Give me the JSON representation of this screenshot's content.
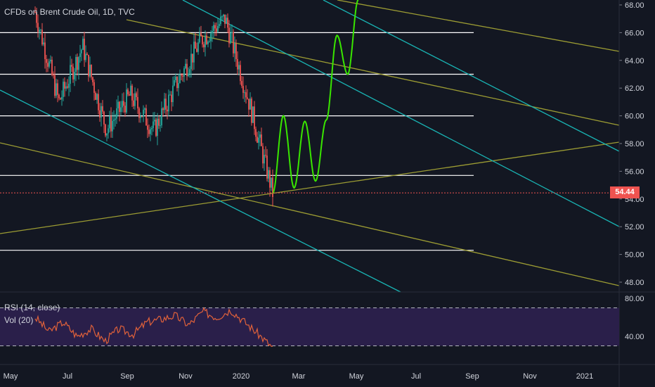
{
  "header": {
    "symbol_title": "CFDs on Brent Crude Oil, 1D, TVC"
  },
  "rsi_panel": {
    "label": "RSI (14, close)",
    "vol_label": "Vol (20)",
    "upper_band": 70,
    "lower_band": 30,
    "ticks": [
      "80.00",
      "40.00"
    ]
  },
  "last_price_badge": "54.44",
  "colors": {
    "background": "#131722",
    "up_candle": "#26a69a",
    "down_candle": "#ef5350",
    "level_line": "#ffffff",
    "olive_trendline": "#9c9c33",
    "teal_trendline": "#19b3b3",
    "projection": "#39e600",
    "rsi_line": "#e0613a",
    "rsi_fill": "#2a1f4a"
  },
  "chart_data": {
    "type": "candlestick",
    "title": "CFDs on Brent Crude Oil, 1D, TVC",
    "y_ticks": [
      "68.00",
      "66.00",
      "64.00",
      "62.00",
      "60.00",
      "58.00",
      "56.00",
      "54.00",
      "52.00",
      "50.00",
      "48.00"
    ],
    "ylim": [
      47.4,
      68.4
    ],
    "x_ticks": [
      "May",
      "Jul",
      "Sep",
      "Nov",
      "2020",
      "Mar",
      "May",
      "Jul",
      "Sep",
      "Nov",
      "2021"
    ],
    "horizontal_levels": [
      66.0,
      63.0,
      60.0,
      55.7,
      50.3
    ],
    "last_price": 54.44,
    "price_path": [
      {
        "t": "May",
        "price": 67.5
      },
      {
        "t": "Jun",
        "price": 61.0
      },
      {
        "t": "Jul",
        "price": 65.0
      },
      {
        "t": "Aug",
        "price": 59.0
      },
      {
        "t": "Sep",
        "price": 61.5
      },
      {
        "t": "Oct",
        "price": 58.9
      },
      {
        "t": "Nov",
        "price": 62.5
      },
      {
        "t": "Dec",
        "price": 65.5
      },
      {
        "t": "Jan 2020",
        "price": 67.0
      },
      {
        "t": "Jan 2020 late",
        "price": 61.0
      },
      {
        "t": "Feb 2020",
        "price": 54.44
      }
    ],
    "projection_path": [
      {
        "t": "Feb",
        "price": 54.4
      },
      {
        "t": "Feb late",
        "price": 60.0
      },
      {
        "t": "Mar",
        "price": 54.8
      },
      {
        "t": "Mar mid",
        "price": 59.6
      },
      {
        "t": "Mar late",
        "price": 55.3
      },
      {
        "t": "Apr",
        "price": 59.7
      },
      {
        "t": "Apr mid",
        "price": 65.8
      },
      {
        "t": "Apr late",
        "price": 63.0
      },
      {
        "t": "May",
        "price": 68.4
      }
    ],
    "rsi": {
      "ylim": [
        20,
        85
      ],
      "band_upper": 70,
      "band_lower": 30,
      "values": [
        60,
        45,
        55,
        40,
        48,
        35,
        48,
        42,
        55,
        58,
        62,
        52,
        66,
        60,
        68,
        55,
        42,
        28
      ]
    },
    "grid": false
  }
}
